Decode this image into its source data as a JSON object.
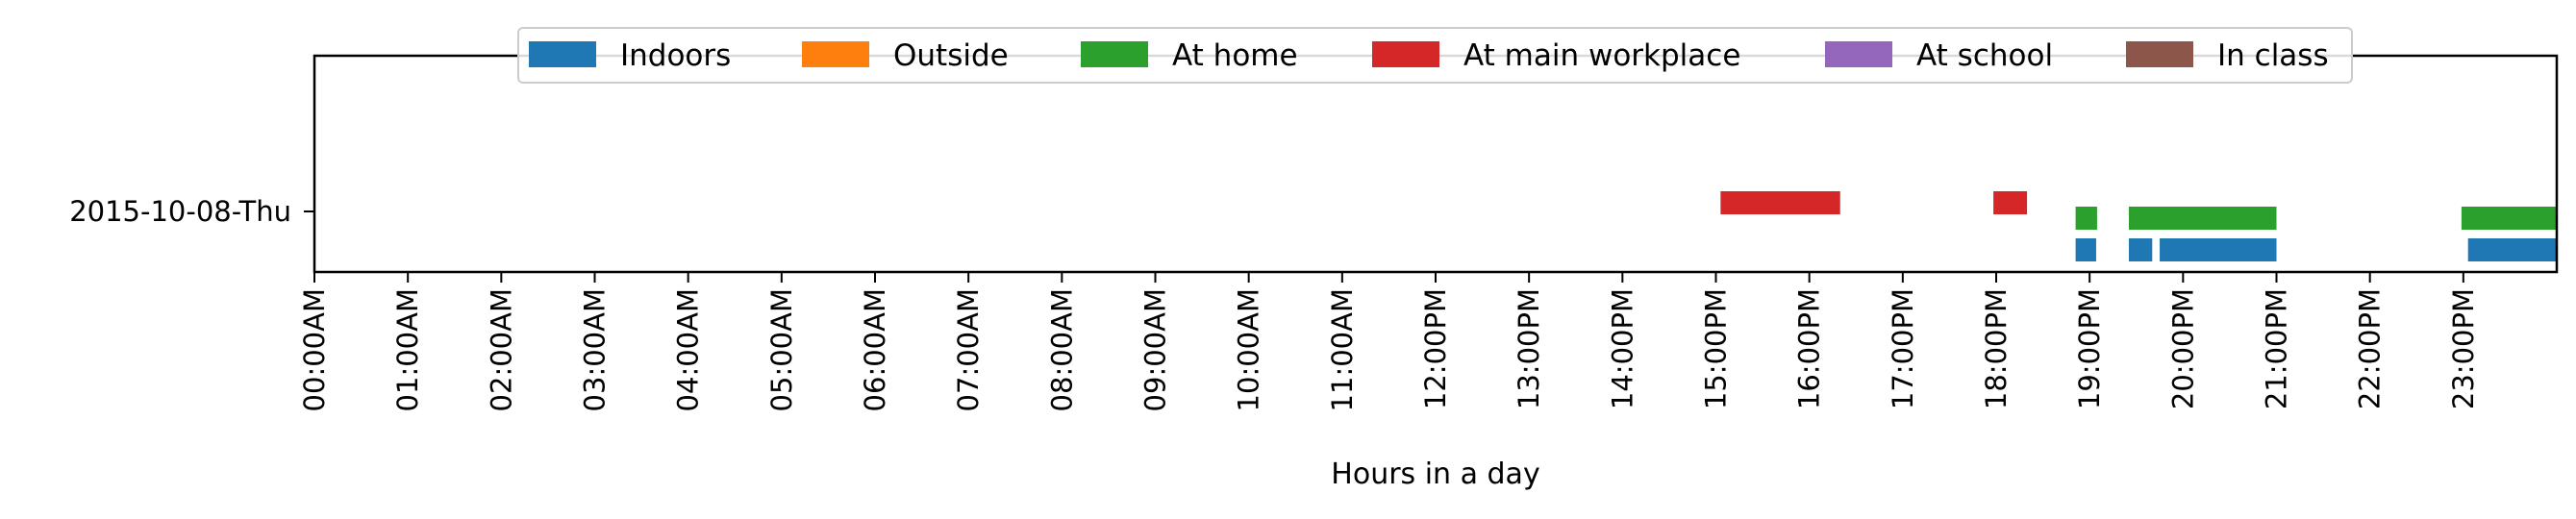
{
  "chart_data": {
    "type": "timeline",
    "xlabel": "Hours in a day",
    "xlim": [
      0,
      24
    ],
    "x_tick_labels": [
      "00:00AM",
      "01:00AM",
      "02:00AM",
      "03:00AM",
      "04:00AM",
      "05:00AM",
      "06:00AM",
      "07:00AM",
      "08:00AM",
      "09:00AM",
      "10:00AM",
      "11:00AM",
      "12:00PM",
      "13:00PM",
      "14:00PM",
      "15:00PM",
      "16:00PM",
      "17:00PM",
      "18:00PM",
      "19:00PM",
      "20:00PM",
      "21:00PM",
      "22:00PM",
      "23:00PM"
    ],
    "y_tick_labels": [
      "2015-10-08-Thu"
    ],
    "legend_position": "top-center",
    "grid": false,
    "series": [
      {
        "name": "Indoors",
        "color": "#1f77b4",
        "intervals": [
          [
            18.85,
            19.07
          ],
          [
            19.42,
            19.67
          ],
          [
            19.75,
            21.0
          ],
          [
            23.05,
            24.0
          ]
        ]
      },
      {
        "name": "Outside",
        "color": "#ff7f0e",
        "intervals": []
      },
      {
        "name": "At home",
        "color": "#2ca02c",
        "intervals": [
          [
            18.85,
            19.08
          ],
          [
            19.42,
            21.0
          ],
          [
            22.98,
            24.0
          ]
        ]
      },
      {
        "name": "At main workplace",
        "color": "#d62728",
        "intervals": [
          [
            15.05,
            16.33
          ],
          [
            17.97,
            18.33
          ]
        ]
      },
      {
        "name": "At school",
        "color": "#9467bd",
        "intervals": []
      },
      {
        "name": "In class",
        "color": "#8c564b",
        "intervals": []
      }
    ]
  }
}
